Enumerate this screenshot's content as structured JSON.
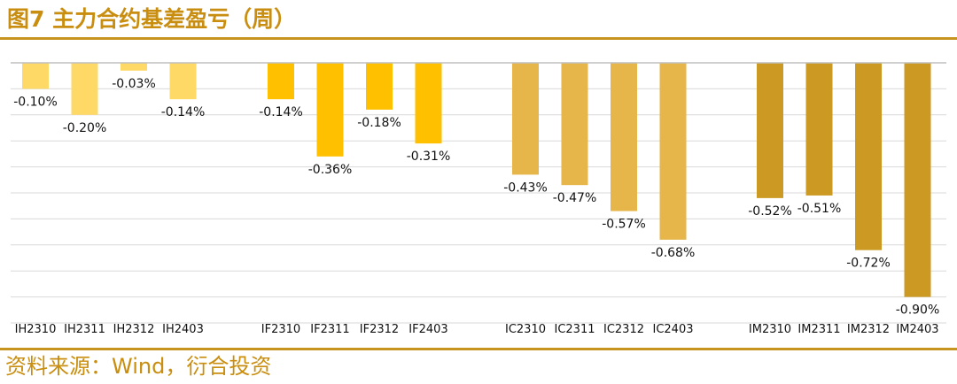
{
  "title": "图7 主力合约基差盈亏（周）",
  "source": "资料来源：Wind，衍合投资",
  "chart_data": {
    "type": "bar",
    "title": "主力合约基差盈亏（周）",
    "xlabel": "",
    "ylabel": "",
    "ylim": [
      -1.0,
      0.0
    ],
    "grid": true,
    "legend": "none",
    "categories": [
      "IH2310",
      "IH2311",
      "IH2312",
      "IH2403",
      "IF2310",
      "IF2311",
      "IF2312",
      "IF2403",
      "IC2310",
      "IC2311",
      "IC2312",
      "IC2403",
      "IM2310",
      "IM2311",
      "IM2312",
      "IM2403"
    ],
    "values": [
      -0.1,
      -0.2,
      -0.03,
      -0.14,
      -0.14,
      -0.36,
      -0.18,
      -0.31,
      -0.43,
      -0.47,
      -0.57,
      -0.68,
      -0.52,
      -0.51,
      -0.72,
      -0.9
    ],
    "labels": [
      "-0.10%",
      "-0.20%",
      "-0.03%",
      "-0.14%",
      "-0.14%",
      "-0.36%",
      "-0.18%",
      "-0.31%",
      "-0.43%",
      "-0.47%",
      "-0.57%",
      "-0.68%",
      "-0.52%",
      "-0.51%",
      "-0.72%",
      "-0.90%"
    ],
    "groups": [
      {
        "name": "IH",
        "color": "#ffd966"
      },
      {
        "name": "IF",
        "color": "#ffc000"
      },
      {
        "name": "IC",
        "color": "#e6b64a"
      },
      {
        "name": "IM",
        "color": "#cc9a22"
      }
    ]
  }
}
